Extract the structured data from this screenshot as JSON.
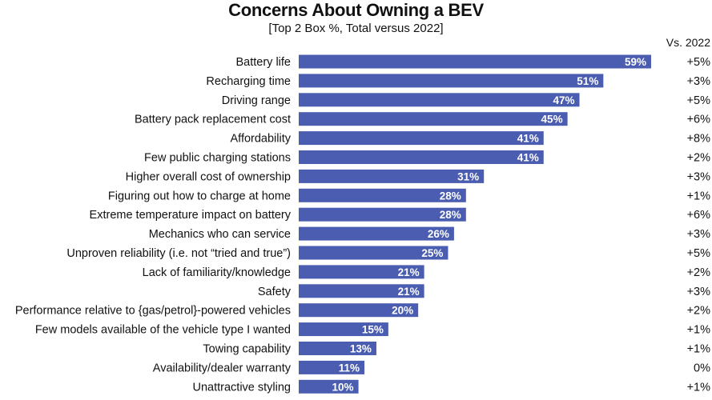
{
  "chart_data": {
    "type": "bar",
    "orientation": "horizontal",
    "title": "Concerns About Owning a BEV",
    "subtitle": "[Top 2 Box %, Total versus 2022]",
    "comparison_header": "Vs. 2022",
    "value_suffix": "%",
    "xlim": [
      0,
      60
    ],
    "grid": false,
    "bar_color": "#4a5db0",
    "categories": [
      "Battery life",
      "Recharging time",
      "Driving range",
      "Battery pack replacement cost",
      "Affordability",
      "Few public charging stations",
      "Higher overall cost of ownership",
      "Figuring out how to charge at home",
      "Extreme temperature impact on battery",
      "Mechanics who can service",
      "Unproven reliability (i.e. not “tried and true”)",
      "Lack of familiarity/knowledge",
      "Safety",
      "Performance relative to {gas/petrol}-powered vehicles",
      "Few models available of the vehicle type I wanted",
      "Towing capability",
      "Availability/dealer warranty",
      "Unattractive styling"
    ],
    "values": [
      59,
      51,
      47,
      45,
      41,
      41,
      31,
      28,
      28,
      26,
      25,
      21,
      21,
      20,
      15,
      13,
      11,
      10
    ],
    "changes": [
      "+5%",
      "+3%",
      "+5%",
      "+6%",
      "+8%",
      "+2%",
      "+3%",
      "+1%",
      "+6%",
      "+3%",
      "+5%",
      "+2%",
      "+3%",
      "+2%",
      "+1%",
      "+1%",
      "0%",
      "+1%"
    ]
  }
}
